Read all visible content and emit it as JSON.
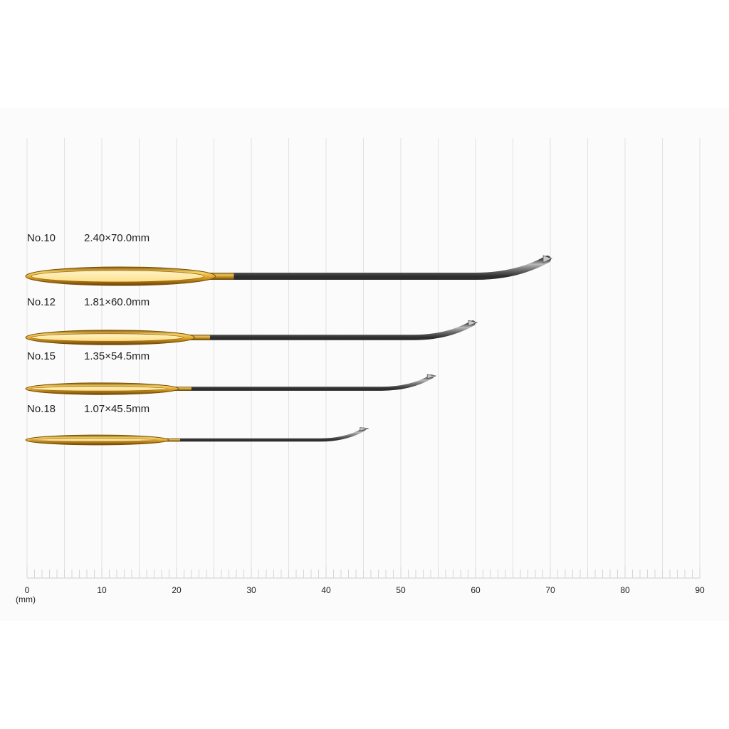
{
  "scale": {
    "unit_label": "(mm)",
    "ticks": [
      "0",
      "10",
      "20",
      "30",
      "40",
      "50",
      "60",
      "70",
      "80",
      "90"
    ],
    "min": 0,
    "max": 90
  },
  "needles": [
    {
      "number": "No.10",
      "size": "2.40×70.0mm",
      "length_mm": 70.0,
      "diameter_mm": 2.4
    },
    {
      "number": "No.12",
      "size": "1.81×60.0mm",
      "length_mm": 60.0,
      "diameter_mm": 1.81
    },
    {
      "number": "No.15",
      "size": "1.35×54.5mm",
      "length_mm": 54.5,
      "diameter_mm": 1.35
    },
    {
      "number": "No.18",
      "size": "1.07×45.5mm",
      "length_mm": 45.5,
      "diameter_mm": 1.07
    }
  ],
  "colors": {
    "background": "#fbfbfb",
    "gridline": "#e2e2e2",
    "gold": "#d4a020",
    "steel": "#8a8a8a"
  }
}
